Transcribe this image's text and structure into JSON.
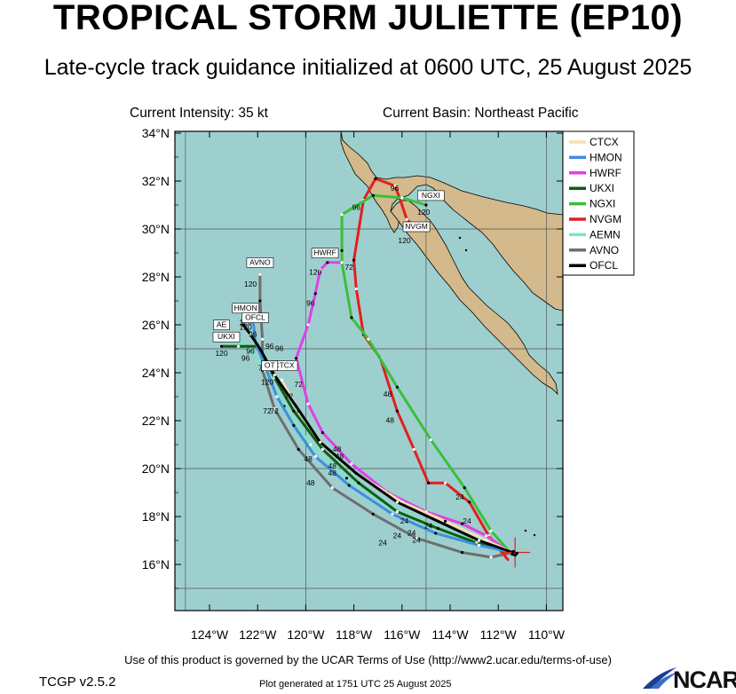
{
  "header": {
    "title": "TROPICAL STORM JULIETTE (EP10)",
    "subtitle": "Late-cycle track guidance initialized at 0600 UTC, 25 August 2025",
    "current_intensity": "Current Intensity: 35 kt",
    "current_basin": "Current Basin: Northeast Pacific"
  },
  "footer": {
    "terms": "Use of this product is governed by the UCAR Terms of Use (http://www2.ucar.edu/terms-of-use)",
    "version": "TCGP v2.5.2",
    "generated": "Plot generated at 1751 UTC   25 August 2025",
    "logo_text": "NCAR"
  },
  "axes": {
    "lat_labels": [
      "34°N",
      "32°N",
      "30°N",
      "28°N",
      "26°N",
      "24°N",
      "22°N",
      "20°N",
      "18°N",
      "16°N"
    ],
    "lon_labels": [
      "124°W",
      "122°W",
      "120°W",
      "118°W",
      "116°W",
      "114°W",
      "112°W",
      "110°W"
    ]
  },
  "colors": {
    "ocean": "#9ecfcf",
    "land": "#d3b98b",
    "CTCX": "#f7dfb4",
    "HMON": "#3b8fe0",
    "HWRF": "#e040e8",
    "UKXI": "#0c5f10",
    "NGXI": "#38c138",
    "NVGM": "#e41e1e",
    "AEMN": "#7fe3c4",
    "AVNO": "#6e6e6e",
    "OFCL": "#000000"
  },
  "legend": [
    "CTCX",
    "HMON",
    "HWRF",
    "UKXI",
    "NGXI",
    "NVGM",
    "AEMN",
    "AVNO",
    "OFCL"
  ],
  "tracks": {
    "CTCX": [
      [
        -111.4,
        16.5
      ],
      [
        -112.5,
        17.0
      ],
      [
        -114.2,
        17.8
      ],
      [
        -116.0,
        18.6
      ],
      [
        -117.9,
        19.8
      ],
      [
        -119.3,
        21.0
      ],
      [
        -120.3,
        22.4
      ],
      [
        -121.0,
        23.7
      ]
    ],
    "HMON": [
      [
        -111.4,
        16.5
      ],
      [
        -112.8,
        16.8
      ],
      [
        -114.6,
        17.3
      ],
      [
        -116.4,
        18.1
      ],
      [
        -118.2,
        19.3
      ],
      [
        -119.6,
        20.5
      ],
      [
        -120.5,
        21.8
      ],
      [
        -121.2,
        23.0
      ],
      [
        -121.7,
        24.3
      ],
      [
        -122.1,
        25.3
      ],
      [
        -122.2,
        26.3
      ]
    ],
    "HWRF": [
      [
        -111.5,
        16.5
      ],
      [
        -112.5,
        17.2
      ],
      [
        -113.5,
        17.7
      ],
      [
        -115.0,
        18.2
      ],
      [
        -116.6,
        19.0
      ],
      [
        -118.1,
        20.2
      ],
      [
        -119.3,
        21.5
      ],
      [
        -119.9,
        22.7
      ],
      [
        -120.4,
        24.6
      ],
      [
        -119.9,
        26.0
      ],
      [
        -119.6,
        27.3
      ],
      [
        -119.4,
        28.3
      ],
      [
        -119.1,
        28.6
      ],
      [
        -118.5,
        28.6
      ]
    ],
    "UKXI": [
      [
        -111.4,
        16.5
      ],
      [
        -112.9,
        16.9
      ],
      [
        -114.5,
        17.5
      ],
      [
        -116.2,
        18.2
      ],
      [
        -117.8,
        19.4
      ],
      [
        -119.3,
        20.8
      ],
      [
        -120.5,
        22.4
      ],
      [
        -121.3,
        23.8
      ],
      [
        -122.0,
        25.1
      ],
      [
        -122.8,
        25.1
      ],
      [
        -123.5,
        25.1
      ]
    ],
    "NGXI": [
      [
        -111.5,
        16.5
      ],
      [
        -112.3,
        17.4
      ],
      [
        -113.4,
        19.2
      ],
      [
        -114.8,
        21.2
      ],
      [
        -116.2,
        23.4
      ],
      [
        -117.4,
        25.4
      ],
      [
        -118.1,
        26.3
      ],
      [
        -118.5,
        28.6
      ],
      [
        -118.5,
        29.1
      ],
      [
        -118.5,
        30.6
      ],
      [
        -117.2,
        31.4
      ],
      [
        -116.0,
        31.3
      ],
      [
        -115.0,
        31.0
      ]
    ],
    "NVGM": [
      [
        -111.6,
        16.2
      ],
      [
        -112.4,
        17.2
      ],
      [
        -113.2,
        18.6
      ],
      [
        -114.2,
        19.4
      ],
      [
        -114.9,
        19.4
      ],
      [
        -115.5,
        20.8
      ],
      [
        -116.2,
        22.4
      ],
      [
        -116.9,
        24.6
      ],
      [
        -117.6,
        25.6
      ],
      [
        -117.9,
        27.5
      ],
      [
        -118.0,
        28.7
      ],
      [
        -117.6,
        31.2
      ],
      [
        -117.1,
        32.1
      ],
      [
        -116.3,
        31.8
      ],
      [
        -116.1,
        31.3
      ],
      [
        -115.8,
        30.4
      ],
      [
        -115.5,
        30.1
      ]
    ],
    "AEMN": [
      [
        -111.4,
        16.5
      ],
      [
        -113.0,
        17.0
      ],
      [
        -114.8,
        17.6
      ],
      [
        -116.6,
        18.5
      ],
      [
        -118.3,
        19.6
      ],
      [
        -119.8,
        21.0
      ],
      [
        -120.9,
        22.6
      ],
      [
        -121.7,
        24.1
      ],
      [
        -122.4,
        25.1
      ],
      [
        -123.0,
        25.4
      ],
      [
        -123.6,
        25.5
      ]
    ],
    "AVNO": [
      [
        -111.4,
        16.5
      ],
      [
        -112.3,
        16.3
      ],
      [
        -113.5,
        16.5
      ],
      [
        -115.4,
        17.1
      ],
      [
        -117.2,
        18.1
      ],
      [
        -118.9,
        19.2
      ],
      [
        -120.3,
        20.8
      ],
      [
        -121.3,
        22.5
      ],
      [
        -121.8,
        24.1
      ],
      [
        -121.8,
        25.4
      ],
      [
        -121.9,
        27.0
      ],
      [
        -121.9,
        28.1
      ]
    ],
    "OFCL": [
      [
        -111.4,
        16.5
      ],
      [
        -112.8,
        17.0
      ],
      [
        -114.5,
        17.8
      ],
      [
        -116.2,
        18.6
      ],
      [
        -117.9,
        19.8
      ],
      [
        -119.4,
        21.1
      ],
      [
        -120.4,
        22.6
      ],
      [
        -121.3,
        23.9
      ],
      [
        -121.9,
        25.0
      ],
      [
        -122.3,
        25.6
      ],
      [
        -122.6,
        26.0
      ]
    ]
  },
  "hour_labels": [
    {
      "text": "24",
      "lon": -115.9,
      "lat": 17.7
    },
    {
      "text": "24",
      "lon": -116.2,
      "lat": 17.1
    },
    {
      "text": "24",
      "lon": -115.6,
      "lat": 17.2
    },
    {
      "text": "24",
      "lon": -114.9,
      "lat": 17.5
    },
    {
      "text": "24",
      "lon": -116.8,
      "lat": 16.8
    },
    {
      "text": "24",
      "lon": -115.4,
      "lat": 16.9
    },
    {
      "text": "24",
      "lon": -113.3,
      "lat": 17.7
    },
    {
      "text": "24",
      "lon": -113.6,
      "lat": 18.7
    },
    {
      "text": "48",
      "lon": -118.7,
      "lat": 20.7
    },
    {
      "text": "48",
      "lon": -118.6,
      "lat": 20.4
    },
    {
      "text": "48",
      "lon": -118.9,
      "lat": 20.0
    },
    {
      "text": "48",
      "lon": -118.9,
      "lat": 19.7
    },
    {
      "text": "48",
      "lon": -119.9,
      "lat": 20.3
    },
    {
      "text": "48",
      "lon": -119.8,
      "lat": 19.3
    },
    {
      "text": "48",
      "lon": -116.6,
      "lat": 23.0
    },
    {
      "text": "48",
      "lon": -116.5,
      "lat": 21.9
    },
    {
      "text": "72",
      "lon": -121.6,
      "lat": 22.3
    },
    {
      "text": "72",
      "lon": -121.3,
      "lat": 22.3
    },
    {
      "text": "72",
      "lon": -120.7,
      "lat": 22.9
    },
    {
      "text": "72",
      "lon": -120.3,
      "lat": 23.4
    },
    {
      "text": "72",
      "lon": -120.6,
      "lat": 24.1
    },
    {
      "text": "72",
      "lon": -118.2,
      "lat": 28.3
    },
    {
      "text": "72",
      "lon": -118.9,
      "lat": 28.9
    },
    {
      "text": "72",
      "lon": -121.8,
      "lat": 24.1
    },
    {
      "text": "96",
      "lon": -119.8,
      "lat": 26.8
    },
    {
      "text": "96",
      "lon": -116.3,
      "lat": 31.6
    },
    {
      "text": "96",
      "lon": -117.9,
      "lat": 30.8
    },
    {
      "text": "96",
      "lon": -122.5,
      "lat": 24.5
    },
    {
      "text": "96",
      "lon": -122.3,
      "lat": 24.8
    },
    {
      "text": "96",
      "lon": -122.2,
      "lat": 25.5
    },
    {
      "text": "96",
      "lon": -121.5,
      "lat": 25.0
    },
    {
      "text": "96",
      "lon": -121.1,
      "lat": 24.9
    },
    {
      "text": "120",
      "lon": -119.6,
      "lat": 28.1
    },
    {
      "text": "120",
      "lon": -115.9,
      "lat": 29.4
    },
    {
      "text": "120",
      "lon": -115.1,
      "lat": 30.6
    },
    {
      "text": "120",
      "lon": -122.3,
      "lat": 27.6
    },
    {
      "text": "120",
      "lon": -123.5,
      "lat": 24.7
    },
    {
      "text": "120",
      "lon": -122.5,
      "lat": 25.8
    },
    {
      "text": "120",
      "lon": -121.6,
      "lat": 23.5
    },
    {
      "text": "120",
      "lon": -122.5,
      "lat": 26.0
    }
  ],
  "model_tags": [
    {
      "text": "AVNO",
      "lon": -121.9,
      "lat": 28.5
    },
    {
      "text": "HWRF",
      "lon": -119.2,
      "lat": 28.9
    },
    {
      "text": "NGXI",
      "lon": -114.8,
      "lat": 31.3
    },
    {
      "text": "NVGM",
      "lon": -115.4,
      "lat": 30.0
    },
    {
      "text": "HMON",
      "lon": -122.5,
      "lat": 26.6
    },
    {
      "text": "OFCL",
      "lon": -122.1,
      "lat": 26.2
    },
    {
      "text": "AE",
      "lon": -123.5,
      "lat": 25.9
    },
    {
      "text": "UKXI",
      "lon": -123.3,
      "lat": 25.4
    },
    {
      "text": "CTCX",
      "lon": -120.9,
      "lat": 24.2
    },
    {
      "text": "OT",
      "lon": -121.5,
      "lat": 24.2
    }
  ],
  "storm_position": {
    "lon": -111.3,
    "lat": 16.5
  }
}
